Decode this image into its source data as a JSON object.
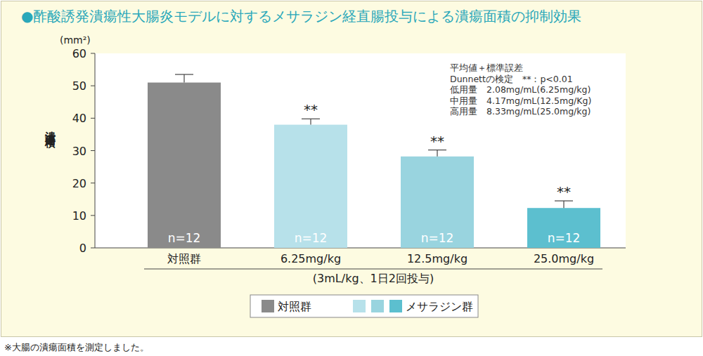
{
  "chart_data": {
    "type": "bar",
    "title": "●酢酸誘発潰瘍性大腸炎モデルに対するメサラジン経直腸投与による潰瘍面積の抑制効果",
    "y_unit": "(mm²)",
    "ylabel": "潰瘍面積",
    "xlabel": "(3mL/kg、1日2回投与)",
    "categories": [
      "対照群",
      "6.25mg/kg",
      "12.5mg/kg",
      "25.0mg/kg"
    ],
    "values": [
      51.0,
      38.0,
      28.2,
      12.3
    ],
    "errors": [
      2.5,
      1.8,
      2.0,
      2.2
    ],
    "colors": [
      "#8a8a8a",
      "#b7e1ea",
      "#99d4df",
      "#5cbfcf"
    ],
    "n_labels": [
      "n=12",
      "n=12",
      "n=12",
      "n=12"
    ],
    "significance": [
      null,
      "**",
      "**",
      "**"
    ],
    "ylim": [
      0,
      60
    ],
    "yticks": [
      0,
      10,
      20,
      30,
      40,
      50,
      60
    ],
    "grid": false,
    "data_labels": false,
    "legend": "bottom",
    "legend_entries": [
      {
        "label": "対照群",
        "colors": [
          "#8a8a8a"
        ]
      },
      {
        "label": "メサラジン群",
        "colors": [
          "#b7e1ea",
          "#99d4df",
          "#5cbfcf"
        ]
      }
    ],
    "annotations": [
      "平均値＋標準誤差",
      "Dunnettの検定　**：p<0.01",
      "低用量　2.08mg/mL(6.25mg/kg)",
      "中用量　4.17mg/mL(12.5mg/Kg)",
      "高用量　8.33mg/mL(25.0mg/kg)"
    ],
    "note": "※大腸の潰瘍面積を測定しました。"
  }
}
